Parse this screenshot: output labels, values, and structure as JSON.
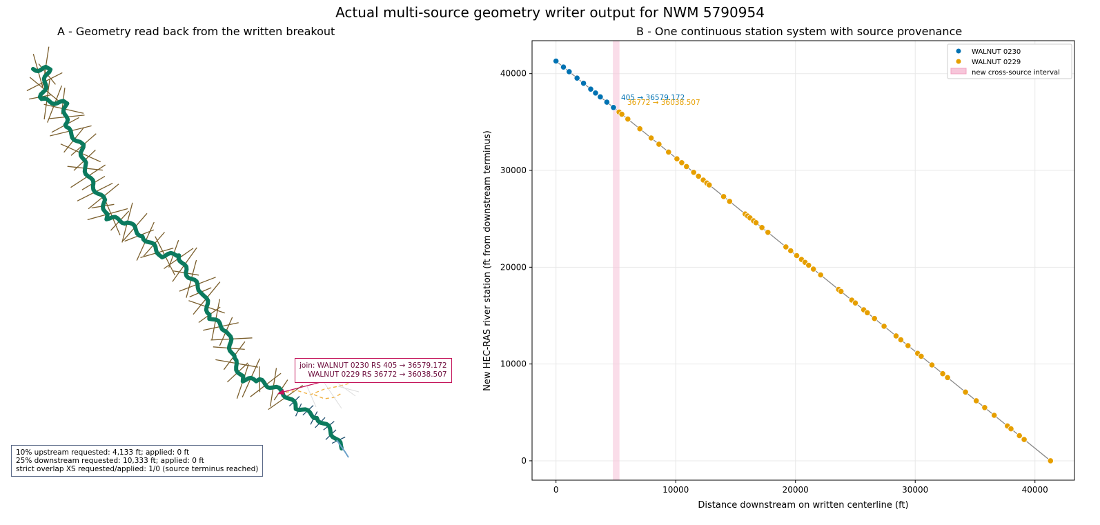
{
  "suptitle": "Actual multi-source geometry writer output for NWM 5790954",
  "panel_a": {
    "title": "A - Geometry read back from the written breakout",
    "join_label_line1": "join: WALNUT 0230 RS 405 → 36579.172",
    "join_label_line2": "WALNUT 0229 RS 36772 → 36038.507",
    "notes": [
      "10% upstream requested: 4,133 ft; applied: 0 ft",
      "25% downstream requested: 10,333 ft; applied: 0 ft",
      "strict overlap XS requested/applied: 1/0 (source terminus reached)"
    ],
    "colors": {
      "centerline": "#0b7a5e",
      "xs": "#7a5e2c",
      "downstream_xs": "#1f4e6e",
      "upstream_tail": "#f0b040",
      "join": "#c4145a"
    }
  },
  "panel_b": {
    "title": "B - One continuous station system with source provenance",
    "annotations": [
      "405 → 36579.172",
      "36772 → 36038.507"
    ],
    "legend_interval": "new cross-source interval"
  },
  "chart_data": {
    "type": "scatter",
    "xlabel": "Distance downstream on written centerline (ft)",
    "ylabel": "New HEC-RAS river station (ft from downstream terminus)",
    "xlim": [
      -2000,
      43300
    ],
    "ylim": [
      -2000,
      43400
    ],
    "xticks": [
      0,
      10000,
      20000,
      30000,
      40000
    ],
    "yticks": [
      0,
      10000,
      20000,
      30000,
      40000
    ],
    "grid": true,
    "legend": "top-right",
    "interval": [
      4750,
      5300
    ],
    "series": [
      {
        "name": "WALNUT 0230",
        "color": "#0072b2",
        "x": [
          0,
          620,
          1100,
          1760,
          2300,
          2900,
          3300,
          3700,
          4250,
          4800
        ]
      },
      {
        "name": "WALNUT 0229",
        "color": "#e69f00",
        "x": [
          5270,
          5500,
          6000,
          7000,
          7950,
          8600,
          9400,
          10100,
          10500,
          10900,
          11500,
          11900,
          12300,
          12600,
          12800,
          14000,
          14500,
          15800,
          16000,
          16200,
          16500,
          16700,
          17200,
          17700,
          19200,
          19600,
          20100,
          20500,
          20800,
          21100,
          21500,
          22100,
          23600,
          23800,
          24700,
          25000,
          25700,
          26000,
          26600,
          27400,
          28400,
          28800,
          29400,
          30200,
          30500,
          31400,
          32300,
          32700,
          34200,
          35100,
          35800,
          36600,
          37700,
          38000,
          38700,
          39100,
          41300
        ]
      }
    ]
  }
}
